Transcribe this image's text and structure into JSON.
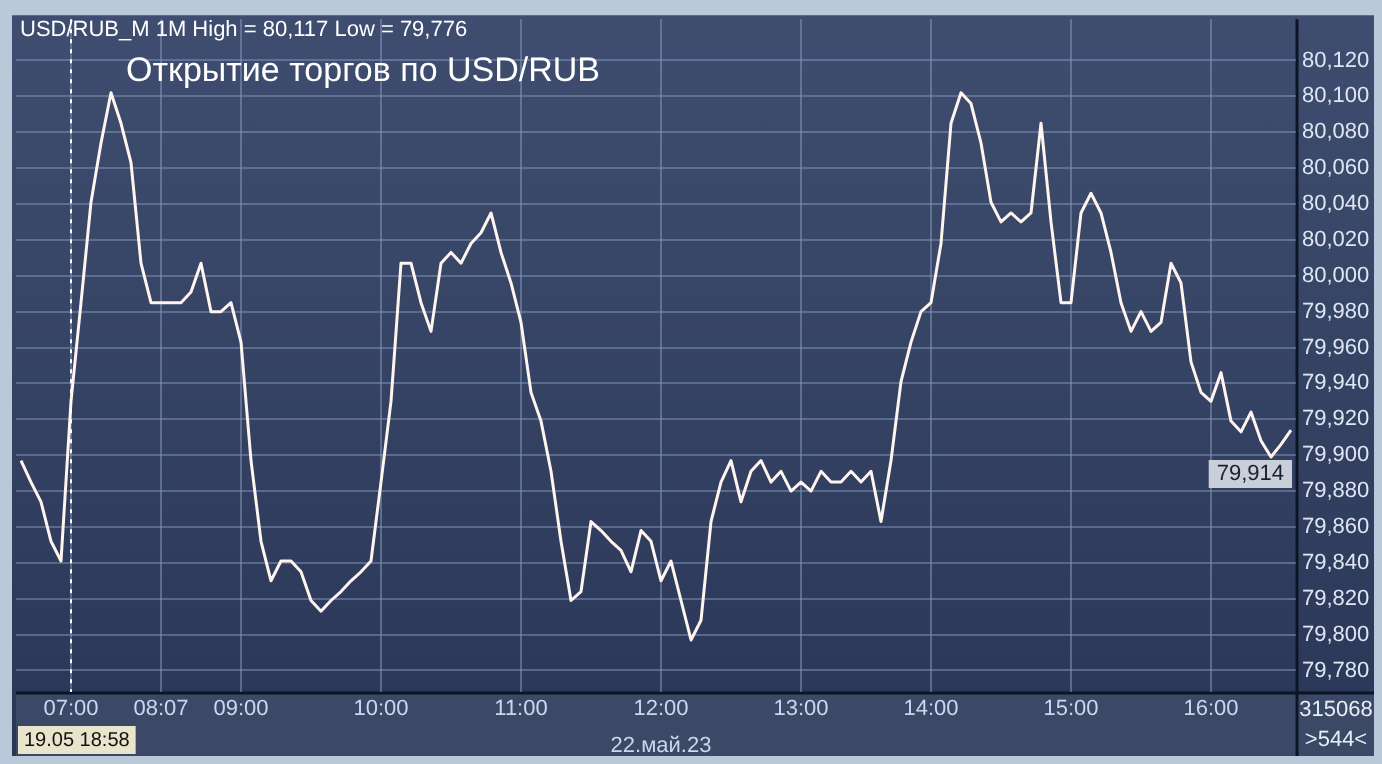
{
  "chart_data": {
    "type": "line",
    "title": "Открытие торгов по USD/RUB",
    "categories": [
      null,
      null,
      null,
      null,
      null,
      "07:00",
      null,
      null,
      null,
      null,
      null,
      null,
      null,
      null,
      "08:07",
      null,
      null,
      null,
      null,
      null,
      null,
      null,
      "09:00",
      null,
      null,
      null,
      null,
      null,
      null,
      null,
      null,
      null,
      null,
      null,
      null,
      null,
      "10:00",
      null,
      null,
      null,
      null,
      null,
      null,
      null,
      null,
      null,
      null,
      null,
      null,
      null,
      "11:00",
      null,
      null,
      null,
      null,
      null,
      null,
      null,
      null,
      null,
      null,
      null,
      null,
      null,
      "12:00",
      null,
      null,
      null,
      null,
      null,
      null,
      null,
      null,
      null,
      null,
      null,
      null,
      null,
      "13:00",
      null,
      null,
      null,
      null,
      null,
      null,
      null,
      null,
      null,
      null,
      null,
      null,
      "14:00",
      null,
      null,
      null,
      null,
      null,
      null,
      null,
      null,
      null,
      null,
      null,
      null,
      null,
      "15:00",
      null,
      null,
      null,
      null,
      null,
      null,
      null,
      null,
      null,
      null,
      null,
      null,
      null,
      "16:00",
      null,
      null,
      null,
      null,
      null,
      null,
      null,
      null
    ],
    "series": [
      {
        "color": "#fff4ee",
        "values": [
          79897,
          79885,
          79874,
          79852,
          79841,
          79930,
          79985,
          80041,
          80074,
          80102,
          80085,
          80063,
          80007,
          79985,
          79985,
          79985,
          79985,
          79991,
          80007,
          79980,
          79980,
          79985,
          79963,
          79897,
          79852,
          79830,
          79841,
          79841,
          79835,
          79819,
          79813,
          79819,
          79824,
          79830,
          79835,
          79841,
          79885,
          79930,
          80007,
          80007,
          79985,
          79969,
          80007,
          80013,
          80007,
          80018,
          80024,
          80035,
          80013,
          79996,
          79974,
          79935,
          79919,
          79891,
          79852,
          79819,
          79824,
          79863,
          79858,
          79852,
          79847,
          79835,
          79858,
          79852,
          79830,
          79841,
          79819,
          79797,
          79808,
          79863,
          79885,
          79897,
          79874,
          79891,
          79897,
          79885,
          79891,
          79880,
          79885,
          79880,
          79891,
          79885,
          79885,
          79891,
          79885,
          79891,
          79863,
          79897,
          79941,
          79963,
          79980,
          79985,
          80018,
          80085,
          80102,
          80096,
          80074,
          80041,
          80030,
          80035,
          80030,
          80035,
          80085,
          80030,
          79985,
          79985,
          80035,
          80046,
          80035,
          80013,
          79985,
          79969,
          79980,
          79969,
          79974,
          80007,
          79996,
          79952,
          79935,
          79930,
          79946,
          79919,
          79913,
          79924,
          79908,
          79899,
          79906,
          79914
        ]
      }
    ],
    "ylim": [
      79768,
      80143
    ],
    "yticks": [
      {
        "value": 79780,
        "label": "79,780"
      },
      {
        "value": 79800,
        "label": "79,800"
      },
      {
        "value": 79820,
        "label": "79,820"
      },
      {
        "value": 79840,
        "label": "79,840"
      },
      {
        "value": 79860,
        "label": "79,860"
      },
      {
        "value": 79880,
        "label": "79,880"
      },
      {
        "value": 79900,
        "label": "79,900"
      },
      {
        "value": 79920,
        "label": "79,920"
      },
      {
        "value": 79940,
        "label": "79,940"
      },
      {
        "value": 79960,
        "label": "79,960"
      },
      {
        "value": 79980,
        "label": "79,980"
      },
      {
        "value": 80000,
        "label": "80,000"
      },
      {
        "value": 80020,
        "label": "80,020"
      },
      {
        "value": 80040,
        "label": "80,040"
      },
      {
        "value": 80060,
        "label": "80,060"
      },
      {
        "value": 80080,
        "label": "80,080"
      },
      {
        "value": 80100,
        "label": "80,100"
      },
      {
        "value": 80120,
        "label": "80,120"
      }
    ],
    "grid": true,
    "legend": false,
    "marker": "none",
    "line_style": "solid",
    "ref_lines": [
      {
        "axis": "x",
        "value": "07:00",
        "color": "#ffffff",
        "line_style": "dotted"
      }
    ],
    "annotations": [
      "USD/RUB_M 1M High = 80,117 Low = 79,776",
      "19.05 18:58",
      "22.май.23",
      "315068",
      ">544<",
      "79,914"
    ]
  }
}
